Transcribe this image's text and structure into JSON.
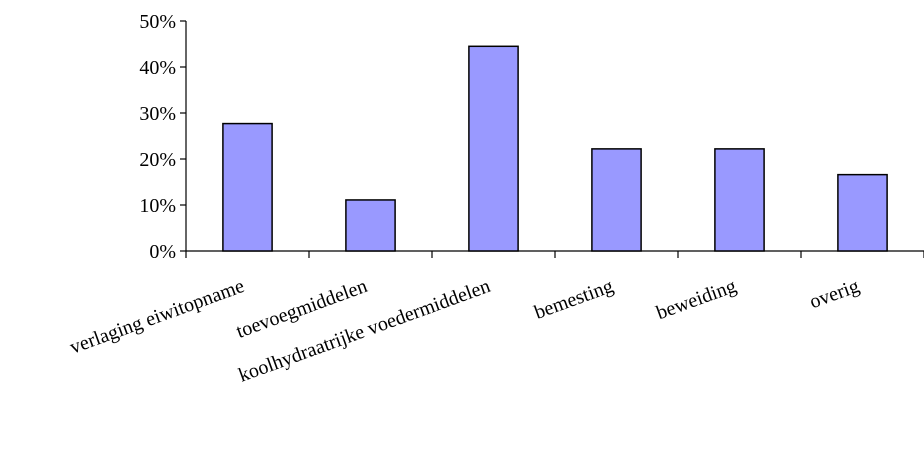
{
  "chart_data": {
    "type": "bar",
    "title": "",
    "xlabel": "",
    "ylabel": "",
    "categories": [
      "verlaging eiwitopname",
      "toevoegmiddelen",
      "koolhydraatrijke voedermiddelen",
      "bemesting",
      "beweiding",
      "overig"
    ],
    "values": [
      0.277,
      0.111,
      0.445,
      0.222,
      0.222,
      0.166
    ],
    "ylim": [
      0,
      0.5
    ],
    "yticks": [
      "0%",
      "10%",
      "20%",
      "30%",
      "40%",
      "50%"
    ],
    "ytick_values": [
      0,
      0.1,
      0.2,
      0.3,
      0.4,
      0.5
    ],
    "grid": false,
    "legend": "none",
    "bar_color": "#9999ff",
    "bar_edge_color": "#000000"
  }
}
